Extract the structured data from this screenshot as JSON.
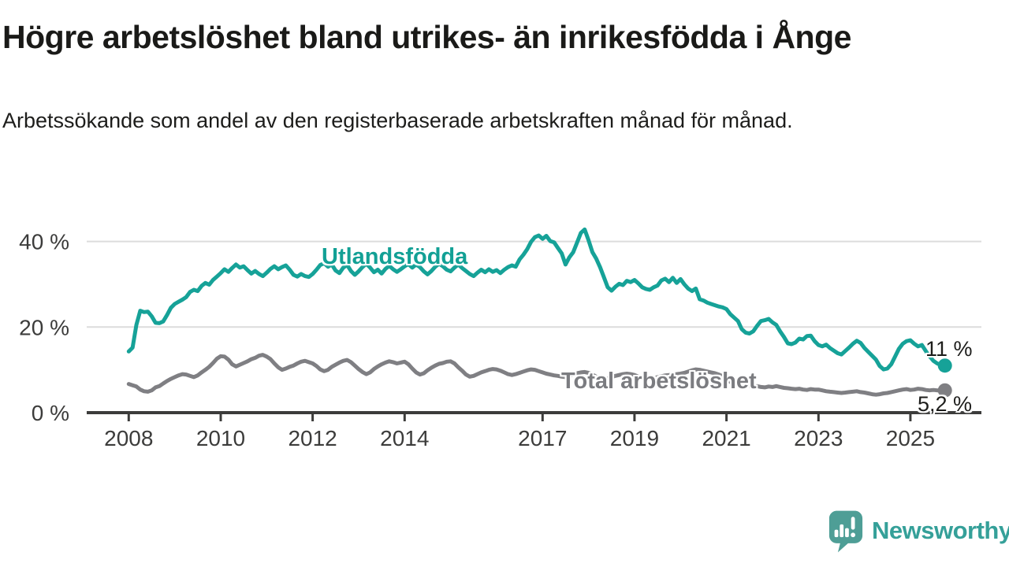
{
  "header": {
    "title": "Högre arbetslöshet bland utrikes- än inrikesfödda i Ånge",
    "subtitle": "Arbetssökande som andel av den registerbaserade arbetskraften månad för månad."
  },
  "chart_data": {
    "type": "line",
    "title": "Högre arbetslöshet bland utrikes- än inrikesfödda i Ånge",
    "subtitle": "Arbetssökande som andel av den registerbaserade arbetskraften månad för månad.",
    "xlabel": "",
    "ylabel": "",
    "xlim": [
      2007.6,
      2025.95
    ],
    "ylim": [
      0,
      44
    ],
    "grid": "horizontal",
    "legend_position": "inline-labels",
    "y_ticks": [
      {
        "value": 0,
        "label": "0 %"
      },
      {
        "value": 20,
        "label": "20 %"
      },
      {
        "value": 40,
        "label": "40 %"
      }
    ],
    "x_ticks": [
      {
        "value": 2008,
        "label": "2008"
      },
      {
        "value": 2010,
        "label": "2010"
      },
      {
        "value": 2012,
        "label": "2012"
      },
      {
        "value": 2014,
        "label": "2014"
      },
      {
        "value": 2017,
        "label": "2017"
      },
      {
        "value": 2019,
        "label": "2019"
      },
      {
        "value": 2021,
        "label": "2021"
      },
      {
        "value": 2023,
        "label": "2023"
      },
      {
        "value": 2025,
        "label": "2025"
      }
    ],
    "series": [
      {
        "name": "Utlandsfödda",
        "color": "#16a298",
        "end_label": "11 %",
        "end_value": 11,
        "start_year": 2008,
        "points_per_year": 12,
        "values": [
          14.3,
          15.2,
          20.5,
          23.8,
          23.5,
          23.6,
          22.5,
          21.0,
          20.9,
          21.3,
          22.8,
          24.5,
          25.4,
          25.9,
          26.4,
          27.0,
          28.2,
          28.7,
          28.4,
          29.6,
          30.3,
          29.9,
          31.0,
          31.8,
          32.6,
          33.5,
          32.9,
          33.8,
          34.6,
          33.9,
          34.2,
          33.3,
          32.5,
          33.1,
          32.4,
          31.9,
          32.7,
          33.6,
          34.2,
          33.5,
          34.0,
          34.4,
          33.4,
          32.2,
          31.8,
          32.4,
          31.9,
          31.7,
          32.4,
          33.4,
          34.5,
          34.9,
          34.1,
          34.6,
          33.2,
          32.6,
          33.9,
          34.5,
          33.1,
          32.2,
          33.0,
          34.0,
          34.8,
          33.9,
          32.8,
          33.4,
          32.5,
          33.6,
          34.3,
          33.5,
          32.9,
          33.5,
          34.2,
          34.7,
          33.9,
          34.6,
          34.0,
          33.0,
          32.3,
          33.1,
          34.1,
          34.8,
          34.2,
          33.4,
          33.0,
          33.9,
          34.6,
          33.8,
          33.1,
          32.4,
          31.9,
          32.7,
          33.4,
          32.8,
          33.5,
          32.9,
          33.3,
          32.6,
          33.4,
          34.0,
          34.4,
          34.1,
          35.8,
          36.9,
          38.2,
          39.9,
          41.0,
          41.4,
          40.6,
          41.3,
          40.1,
          39.8,
          38.5,
          37.2,
          34.6,
          36.3,
          37.5,
          39.7,
          42.0,
          42.8,
          40.3,
          37.5,
          36.0,
          34.0,
          31.7,
          29.3,
          28.5,
          29.4,
          30.1,
          29.8,
          30.8,
          30.5,
          31.0,
          30.2,
          29.3,
          28.9,
          28.7,
          29.3,
          29.7,
          30.9,
          31.3,
          30.5,
          31.5,
          30.3,
          31.2,
          30.0,
          29.0,
          28.4,
          29.0,
          26.5,
          26.2,
          25.7,
          25.4,
          25.1,
          24.8,
          24.6,
          24.2,
          23.0,
          22.2,
          21.4,
          19.5,
          18.7,
          18.5,
          19.0,
          20.3,
          21.4,
          21.6,
          21.9,
          21.1,
          20.5,
          19.0,
          17.7,
          16.2,
          16.0,
          16.4,
          17.3,
          17.1,
          17.9,
          18.0,
          16.7,
          15.8,
          15.5,
          15.9,
          15.1,
          14.5,
          13.9,
          13.6,
          14.4,
          15.2,
          16.1,
          16.8,
          16.3,
          15.1,
          14.2,
          13.3,
          12.4,
          10.9,
          10.1,
          10.3,
          11.3,
          13.1,
          14.9,
          16.1,
          16.7,
          16.9,
          16.1,
          15.5,
          15.8,
          14.4,
          13.2,
          12.1,
          11.5,
          11.1,
          11.0
        ]
      },
      {
        "name": "Total arbetslöshet",
        "color": "#7f7f83",
        "end_label": "5,2 %",
        "end_value": 5.2,
        "start_year": 2008,
        "points_per_year": 12,
        "values": [
          6.7,
          6.4,
          6.1,
          5.4,
          5.0,
          4.9,
          5.2,
          5.9,
          6.2,
          6.8,
          7.4,
          7.9,
          8.3,
          8.7,
          9.0,
          8.9,
          8.6,
          8.3,
          8.7,
          9.4,
          10.0,
          10.7,
          11.6,
          12.6,
          13.2,
          13.1,
          12.4,
          11.3,
          10.8,
          11.2,
          11.6,
          12.0,
          12.5,
          12.8,
          13.3,
          13.5,
          13.1,
          12.5,
          11.5,
          10.6,
          10.0,
          10.3,
          10.7,
          11.0,
          11.5,
          11.9,
          12.1,
          11.8,
          11.5,
          10.9,
          10.1,
          9.7,
          10.0,
          10.7,
          11.2,
          11.7,
          12.1,
          12.3,
          11.8,
          11.0,
          10.2,
          9.5,
          9.0,
          9.4,
          10.2,
          10.8,
          11.3,
          11.7,
          12.0,
          11.8,
          11.5,
          11.7,
          11.9,
          11.3,
          10.3,
          9.4,
          8.9,
          9.2,
          9.9,
          10.5,
          11.0,
          11.4,
          11.6,
          11.9,
          12.0,
          11.5,
          10.6,
          9.8,
          8.9,
          8.4,
          8.6,
          9.0,
          9.4,
          9.7,
          10.0,
          10.2,
          10.1,
          9.8,
          9.4,
          9.0,
          8.8,
          9.0,
          9.3,
          9.6,
          9.9,
          10.1,
          10.0,
          9.7,
          9.4,
          9.1,
          8.9,
          8.7,
          8.6,
          8.4,
          8.3,
          8.6,
          8.9,
          9.2,
          9.4,
          9.5,
          9.3,
          8.9,
          8.4,
          8.0,
          7.8,
          8.0,
          8.3,
          8.6,
          8.8,
          9.0,
          9.1,
          9.0,
          8.8,
          8.4,
          8.0,
          7.8,
          7.9,
          8.1,
          8.3,
          8.5,
          8.7,
          8.8,
          8.9,
          9.0,
          9.1,
          9.3,
          9.6,
          9.9,
          10.1,
          10.0,
          9.8,
          9.6,
          9.4,
          9.2,
          8.9,
          8.5,
          8.0,
          7.2,
          6.8,
          6.7,
          6.6,
          6.4,
          6.2,
          6.0,
          6.2,
          6.0,
          5.9,
          6.1,
          6.0,
          6.2,
          6.0,
          5.8,
          5.7,
          5.6,
          5.5,
          5.6,
          5.4,
          5.3,
          5.5,
          5.4,
          5.4,
          5.2,
          5.0,
          4.9,
          4.8,
          4.7,
          4.6,
          4.7,
          4.8,
          4.9,
          5.0,
          4.8,
          4.7,
          4.5,
          4.3,
          4.2,
          4.3,
          4.5,
          4.6,
          4.8,
          5.0,
          5.2,
          5.4,
          5.5,
          5.3,
          5.4,
          5.6,
          5.5,
          5.3,
          5.2,
          5.3,
          5.2,
          5.2,
          5.2
        ]
      }
    ]
  },
  "style": {
    "axis_color": "#3c3c3b",
    "grid_color": "#dcdcdc",
    "text_color": "#1d1d1b",
    "accent_teal": "#16a298",
    "accent_gray": "#7f7f83",
    "logo_icon_color": "#4e9e96",
    "logo_text_color": "#35a099"
  },
  "footer": {
    "brand": "Newsworthy",
    "logo_icon": "newsworthy-speech-bubble-bar-chart-icon"
  }
}
